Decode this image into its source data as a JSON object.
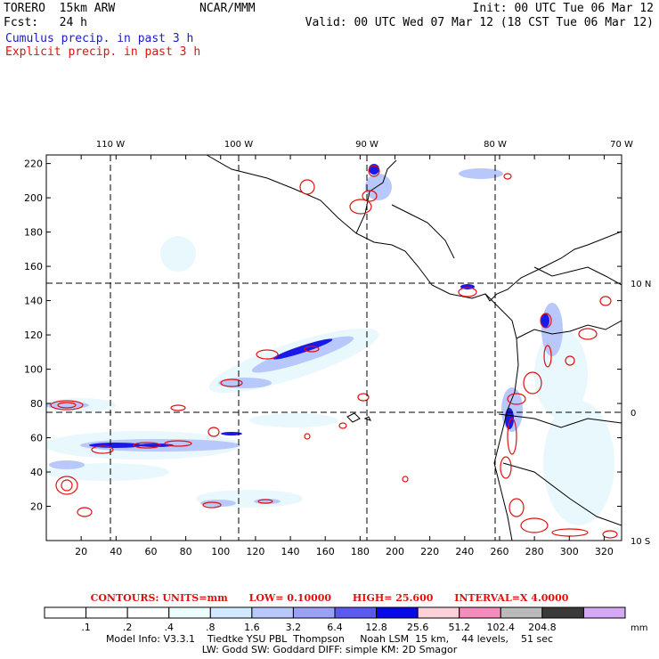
{
  "header": {
    "model_name": "TORERO  15km ARW",
    "center": "NCAR/MMM",
    "init": "Init: 00 UTC Tue 06 Mar 12",
    "fcst": "Fcst:   24 h",
    "valid": "Valid: 00 UTC Wed 07 Mar 12 (18 CST Tue 06 Mar 12)",
    "field1": "Cumulus precip. in past 3 h",
    "field2": "Explicit precip. in past 3 h"
  },
  "map": {
    "x_ticks": [
      "20",
      "40",
      "60",
      "80",
      "100",
      "120",
      "140",
      "160",
      "180",
      "200",
      "220",
      "240",
      "260",
      "280",
      "300",
      "320"
    ],
    "y_ticks": [
      "20",
      "40",
      "60",
      "80",
      "100",
      "120",
      "140",
      "160",
      "180",
      "200",
      "220"
    ],
    "lon_labels": [
      "110 W",
      "100 W",
      "90 W",
      "80 W",
      "70 W"
    ],
    "lat_labels": [
      "10 N",
      "0",
      "10 S"
    ]
  },
  "legend": {
    "units": "CONTOURS:  UNITS=mm",
    "low": "LOW= 0.10000",
    "high": "HIGH=  25.600",
    "interval": "INTERVAL=X  4.0000",
    "values": [
      ".1",
      ".2",
      ".4",
      ".8",
      "1.6",
      "3.2",
      "6.4",
      "12.8",
      "25.6",
      "51.2",
      "102.4",
      "204.8"
    ],
    "unit_label": "mm",
    "colors": [
      "#ffffff",
      "#ffffff",
      "#ffffff",
      "#eefcfc",
      "#d2eaff",
      "#b8c8fa",
      "#9aa0f4",
      "#5a5af0",
      "#0a0ae8",
      "#fcd2d8",
      "#f48cbc",
      "#bababa",
      "#3a3a3a",
      "#d4a8f4"
    ]
  },
  "footer": {
    "line1": "Model Info: V3.3.1    Tiedtke YSU PBL  Thompson     Noah LSM  15 km,    44 levels,    51 sec",
    "line2": "LW: Godd SW: Goddard DIFF: simple KM: 2D Smagor"
  }
}
